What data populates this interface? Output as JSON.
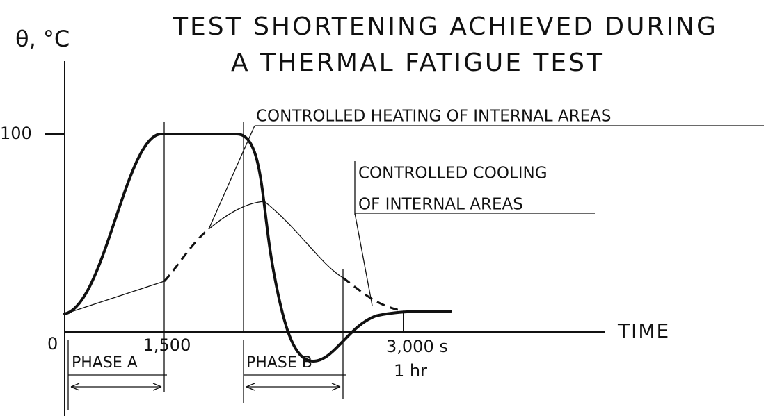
{
  "title": {
    "line1": "TEST SHORTENING ACHIEVED DURING",
    "line2": "A THERMAL FATIGUE TEST"
  },
  "axes": {
    "y_label": "θ, °C",
    "y_tick": "100",
    "x_label": "TIME",
    "origin": "0",
    "x_tick1": "1,500",
    "x_tick2": "3,000 s",
    "x_tick2_alt": "1 hr"
  },
  "phases": {
    "a": "PHASE A",
    "b": "PHASE B"
  },
  "annotations": {
    "heating": "CONTROLLED HEATING OF INTERNAL AREAS",
    "cooling1": "CONTROLLED COOLING",
    "cooling2": "OF INTERNAL AREAS"
  }
}
